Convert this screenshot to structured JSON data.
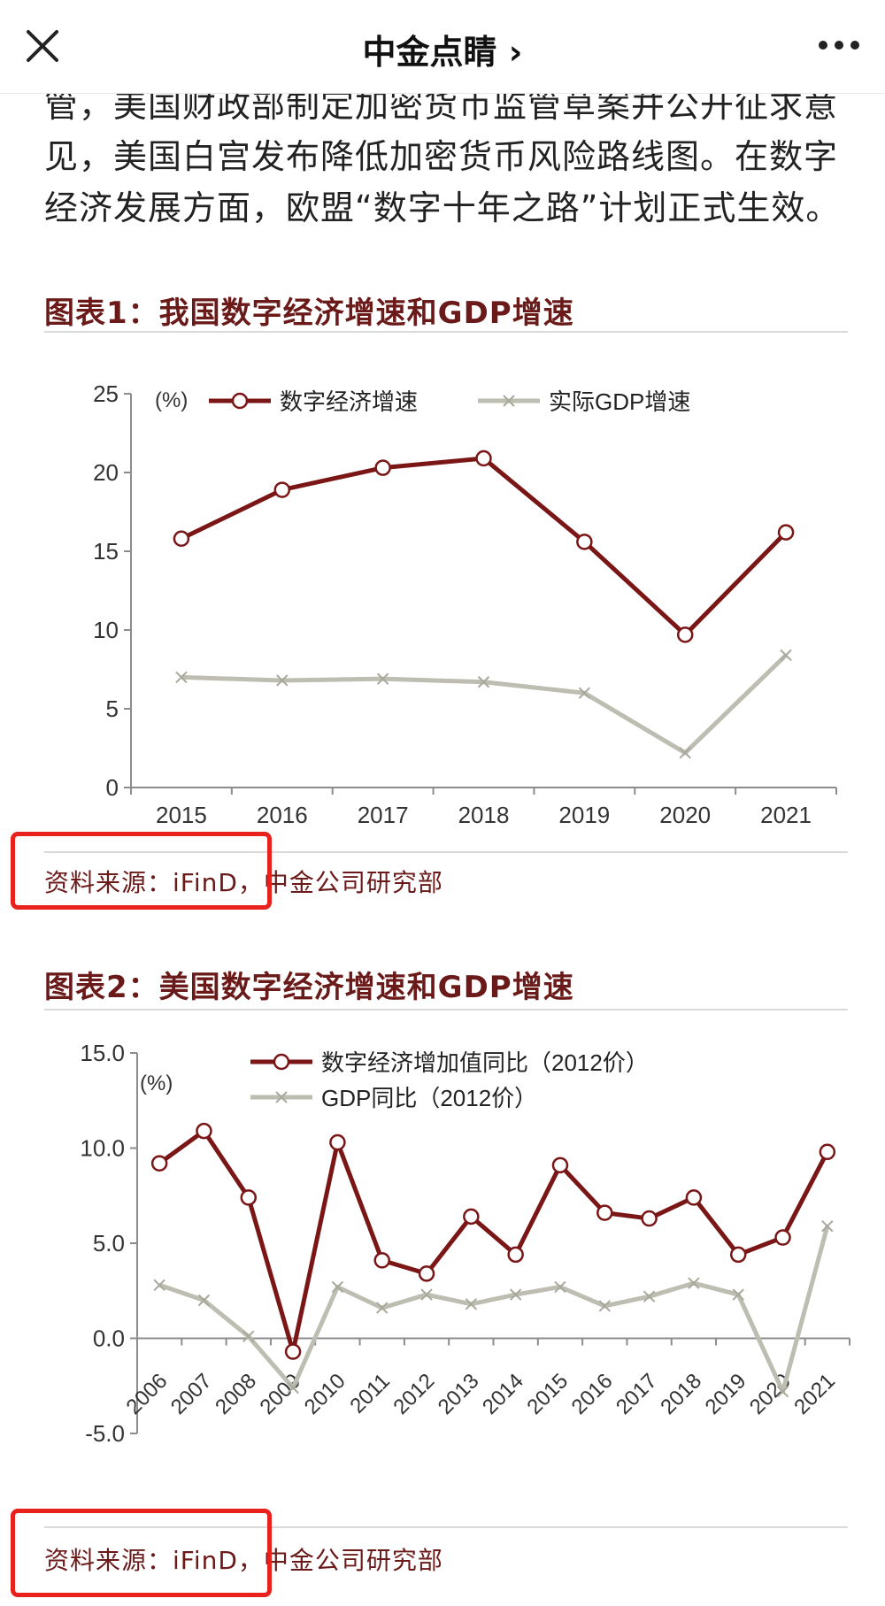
{
  "header": {
    "title": "中金点睛 ›"
  },
  "article": {
    "paragraph_lines": [
      "管，美国财政部制定加密货币监管草案并公开征求意",
      "见，美国白宫发布降低加密货币风险路线图。在数字",
      "经济发展方面，欧盟“数字十年之路”计划正式生效。"
    ]
  },
  "figure1": {
    "title": "图表1：我国数字经济增速和GDP增速",
    "source": "资料来源：iFinD，中金公司研究部"
  },
  "figure2": {
    "title": "图表2：美国数字经济增速和GDP增速",
    "source": "资料来源：iFinD，中金公司研究部"
  },
  "chart_data": [
    {
      "type": "line",
      "title": "",
      "unit_label": "(%)",
      "x": [
        "2015",
        "2016",
        "2017",
        "2018",
        "2019",
        "2020",
        "2021"
      ],
      "ylim": [
        0,
        25
      ],
      "yticks": [
        "0",
        "5",
        "10",
        "15",
        "20",
        "25"
      ],
      "legend_position": "top",
      "series": [
        {
          "name": "数字经济增速",
          "color": "#7a1616",
          "marker": "circle",
          "values": [
            15.8,
            18.9,
            20.3,
            20.9,
            15.6,
            9.7,
            16.2
          ]
        },
        {
          "name": "实际GDP增速",
          "color": "#bdbdb2",
          "marker": "x",
          "values": [
            7.0,
            6.8,
            6.9,
            6.7,
            6.0,
            2.2,
            8.4
          ]
        }
      ]
    },
    {
      "type": "line",
      "title": "",
      "unit_label": "(%)",
      "x": [
        "2006",
        "2007",
        "2008",
        "2009",
        "2010",
        "2011",
        "2012",
        "2013",
        "2014",
        "2015",
        "2016",
        "2017",
        "2018",
        "2019",
        "2020",
        "2021"
      ],
      "ylim": [
        -5,
        15
      ],
      "yticks": [
        "-5.0",
        "0.0",
        "5.0",
        "10.0",
        "15.0"
      ],
      "legend_position": "top",
      "series": [
        {
          "name": "数字经济增加值同比（2012价）",
          "color": "#7a1616",
          "marker": "circle",
          "values": [
            9.2,
            10.9,
            7.4,
            -0.7,
            10.3,
            4.1,
            3.4,
            6.4,
            4.4,
            9.1,
            6.6,
            6.3,
            7.4,
            4.4,
            5.3,
            9.8
          ]
        },
        {
          "name": "GDP同比（2012价）",
          "color": "#bdbdb2",
          "marker": "x",
          "values": [
            2.8,
            2.0,
            0.1,
            -2.6,
            2.7,
            1.6,
            2.3,
            1.8,
            2.3,
            2.7,
            1.7,
            2.2,
            2.9,
            2.3,
            -2.8,
            5.9
          ]
        }
      ]
    }
  ],
  "colors": {
    "figure_title": "#6b1a1a",
    "highlight_box": "#e8211c",
    "series_digital": "#7a1616",
    "series_gdp": "#bdbdb2"
  },
  "icons": {
    "close": "close-icon",
    "more": "more-icon"
  }
}
